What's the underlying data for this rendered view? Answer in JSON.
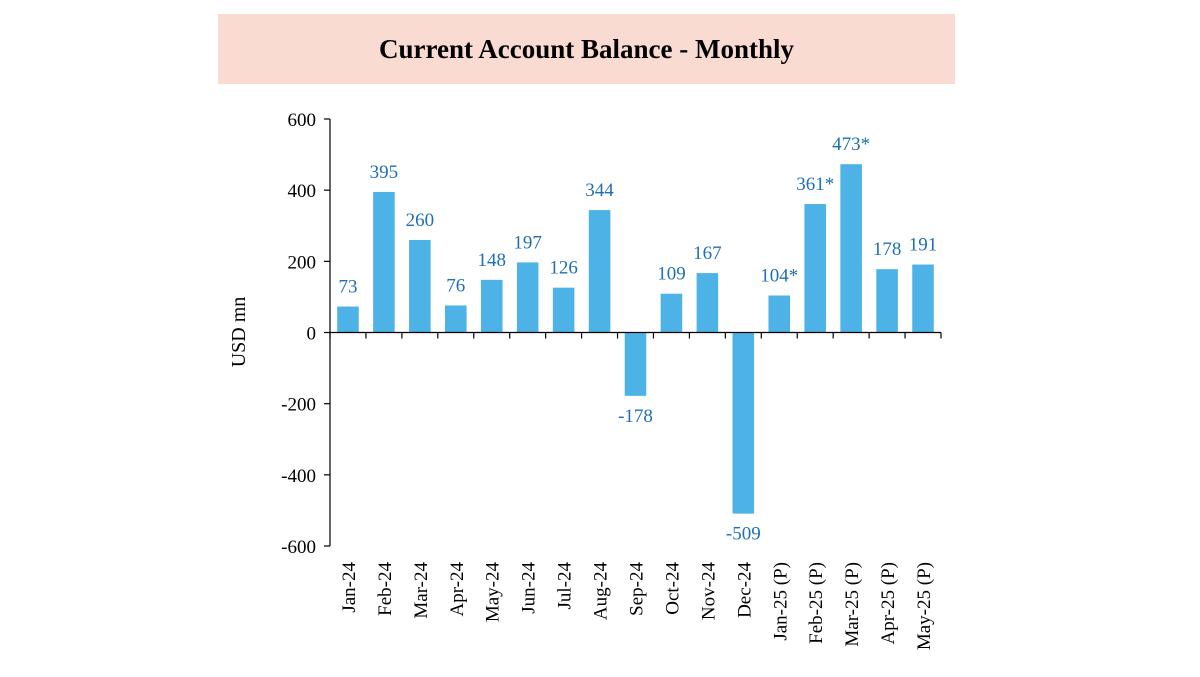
{
  "chart_data": {
    "type": "bar",
    "title": "Current Account Balance - Monthly",
    "xlabel": "",
    "ylabel": "USD mn",
    "ylim": [
      -600,
      600
    ],
    "yticks": [
      "600",
      "400",
      "200",
      "0",
      "-200",
      "-400",
      "-600"
    ],
    "ytick_values": [
      600,
      400,
      200,
      0,
      -200,
      -400,
      -600
    ],
    "categories": [
      "Jan-24",
      "Feb-24",
      "Mar-24",
      "Apr-24",
      "May-24",
      "Jun-24",
      "Jul-24",
      "Aug-24",
      "Sep-24",
      "Oct-24",
      "Nov-24",
      "Dec-24",
      "Jan-25 (P)",
      "Feb-25 (P)",
      "Mar-25 (P)",
      "Apr-25 (P)",
      "May-25 (P)"
    ],
    "values": [
      73,
      395,
      260,
      76,
      148,
      197,
      126,
      344,
      -178,
      109,
      167,
      -509,
      104,
      361,
      473,
      178,
      191
    ],
    "data_labels": [
      "73",
      "395",
      "260",
      "76",
      "148",
      "197",
      "126",
      "344",
      "-178",
      "109",
      "167",
      "-509",
      "104*",
      "361*",
      "473*",
      "178",
      "191"
    ],
    "grid": false,
    "legend": "none"
  },
  "colors": {
    "bar": "#4db3e6",
    "label": "#1f6fb4",
    "axis": "#000000",
    "title_bg": "#fadbd2"
  }
}
